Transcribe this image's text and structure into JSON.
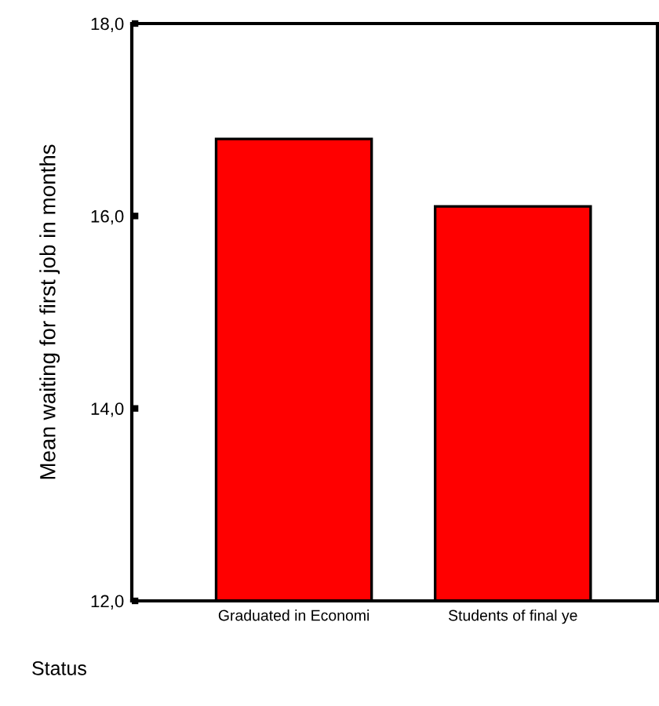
{
  "chart_data": {
    "type": "bar",
    "xlabel": "Status",
    "ylabel": "Mean waiting for first job in months",
    "categories": [
      "Graduated in Economi",
      "Students of final ye"
    ],
    "values": [
      16.8,
      16.1
    ],
    "color": "#ff0000",
    "ylim": [
      12,
      18
    ],
    "yticks": [
      {
        "value": 12,
        "label": "12,0"
      },
      {
        "value": 14,
        "label": "14,0"
      },
      {
        "value": 16,
        "label": "16,0"
      },
      {
        "value": 18,
        "label": "18,0"
      }
    ],
    "grid": false,
    "legend": false
  }
}
